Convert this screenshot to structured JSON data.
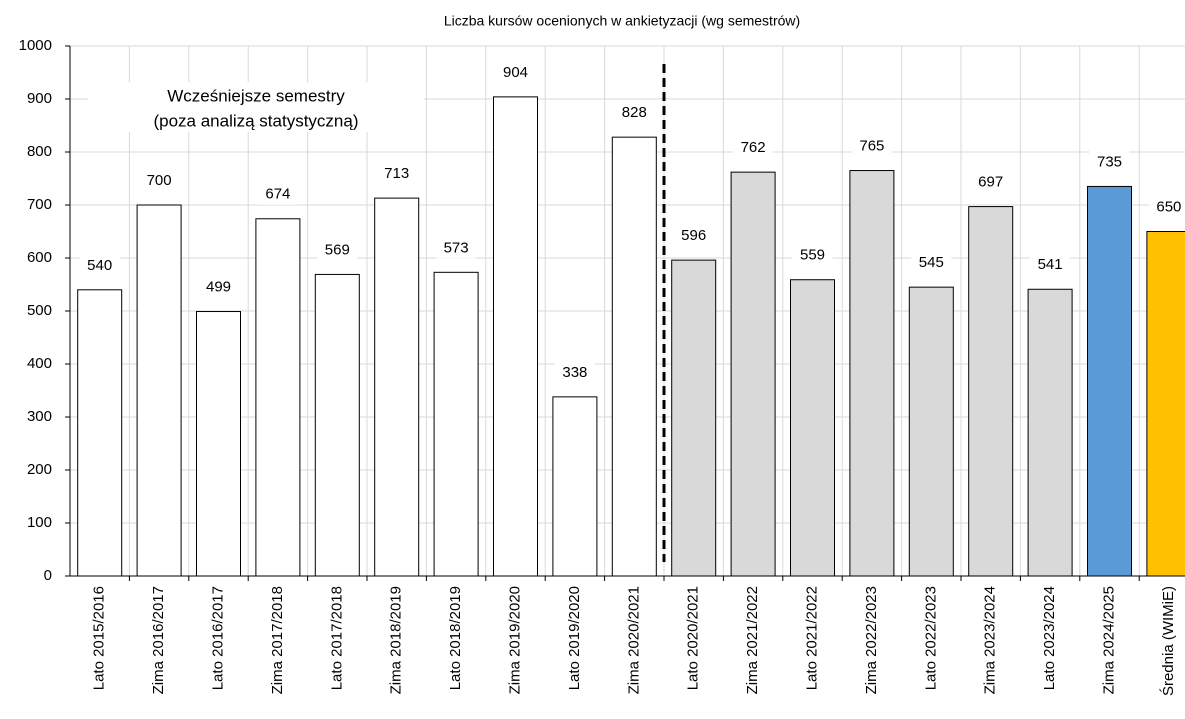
{
  "chart_data": {
    "type": "bar",
    "title": "Liczba kursów ocenionych w ankietyzacji (wg semestrów)",
    "categories": [
      "Lato 2015/2016",
      "Zima 2016/2017",
      "Lato 2016/2017",
      "Zima 2017/2018",
      "Lato 2017/2018",
      "Zima 2018/2019",
      "Lato 2018/2019",
      "Zima 2019/2020",
      "Lato 2019/2020",
      "Zima 2020/2021",
      "Lato 2020/2021",
      "Zima 2021/2022",
      "Lato 2021/2022",
      "Zima 2022/2023",
      "Lato 2022/2023",
      "Zima 2023/2024",
      "Lato 2023/2024",
      "Zima 2024/2025",
      "Średnia (WIMiE)"
    ],
    "values": [
      540,
      700,
      499,
      674,
      569,
      713,
      573,
      904,
      338,
      828,
      596,
      762,
      559,
      765,
      545,
      697,
      541,
      735,
      650
    ],
    "colors": [
      "#ffffff",
      "#ffffff",
      "#ffffff",
      "#ffffff",
      "#ffffff",
      "#ffffff",
      "#ffffff",
      "#ffffff",
      "#ffffff",
      "#ffffff",
      "#d9d9d9",
      "#d9d9d9",
      "#d9d9d9",
      "#d9d9d9",
      "#d9d9d9",
      "#d9d9d9",
      "#d9d9d9",
      "#5b9bd5",
      "#ffc000"
    ],
    "annotation": [
      "Wcześniejsze semestry",
      "(poza analizą statystyczną)"
    ],
    "separator_index": 10,
    "ylim": [
      0,
      1000
    ],
    "yticks": [
      0,
      100,
      200,
      300,
      400,
      500,
      600,
      700,
      800,
      900,
      1000
    ],
    "grid": true
  }
}
